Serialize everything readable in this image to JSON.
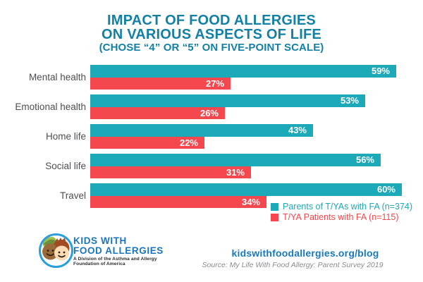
{
  "title": {
    "line1": "IMPACT OF FOOD ALLERGIES",
    "line2": "ON VARIOUS ASPECTS OF LIFE",
    "line3": "(CHOSE “4” OR “5” ON FIVE-POINT SCALE)"
  },
  "chart_data": {
    "type": "bar",
    "orientation": "horizontal",
    "categories": [
      "Mental health",
      "Emotional health",
      "Home life",
      "Social life",
      "Travel"
    ],
    "series": [
      {
        "key": "parents",
        "name": "Parents of T/YAs with FA (n=374)",
        "color": "#1CA9B8",
        "values": [
          59,
          53,
          43,
          56,
          60
        ]
      },
      {
        "key": "patients",
        "name": "T/YA Patients with FA (n=115)",
        "color": "#F4484E",
        "values": [
          27,
          26,
          22,
          31,
          34
        ]
      }
    ],
    "value_suffix": "%",
    "xlim": [
      0,
      62
    ],
    "grid": false,
    "value_labels": "inside-end",
    "legend_position": "bottom-right"
  },
  "footer": {
    "logo": {
      "name": "Kids With Food Allergies logo",
      "line1": "KIDS WITH",
      "line2": "FOOD ALLERGIES",
      "tagline1": "A Division of the Asthma and Allergy",
      "tagline2": "Foundation of America"
    },
    "link": "kidswithfoodallergies.org/blog",
    "source": "Source: My Life With Food Allergy: Parent Survey 2019"
  },
  "colors": {
    "title": "#1380A4",
    "category_label": "#4E4E50",
    "teal": "#1CA9B8",
    "red": "#F4484E",
    "link_blue": "#1779BE",
    "logo_blue": "#1B75BC",
    "logo_tagline": "#2B2B2B",
    "source_gray": "#8A8C8E",
    "logo_ring_blue": "#2B9FD9"
  }
}
